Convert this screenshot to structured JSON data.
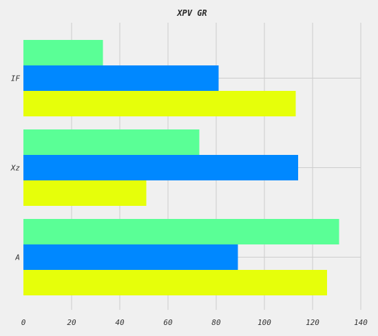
{
  "chart_data": {
    "type": "bar",
    "orientation": "horizontal",
    "title": "XPV GR",
    "xlabel": "",
    "ylabel": "",
    "categories": [
      "IF",
      "Xz",
      "A"
    ],
    "series": [
      {
        "color": "#5aff96",
        "values": [
          33,
          73,
          131
        ]
      },
      {
        "color": "#0088ff",
        "values": [
          81,
          114,
          89
        ]
      },
      {
        "color": "#e6ff0a",
        "values": [
          113,
          51,
          126
        ]
      }
    ],
    "xlim": [
      0,
      140
    ],
    "xticks": [
      0,
      20,
      40,
      60,
      80,
      100,
      120,
      140
    ],
    "grid": true,
    "background": "#f0f0f0",
    "legend": "none"
  }
}
